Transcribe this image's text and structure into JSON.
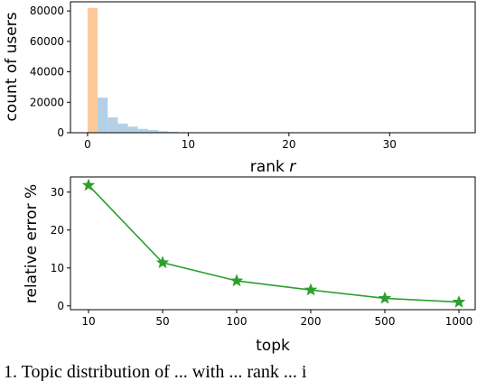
{
  "chart_data": [
    {
      "type": "bar",
      "title": "",
      "xlabel": "rank",
      "xlabel_var": "r",
      "ylabel": "count of users",
      "xlim": [
        -1.7,
        38.5
      ],
      "ylim": [
        0,
        86000
      ],
      "xticks": [
        0,
        10,
        20,
        30
      ],
      "yticks": [
        0,
        20000,
        40000,
        60000,
        80000
      ],
      "bin_width": 1,
      "colors": {
        "highlight": "#fdc999",
        "bars": "#b3d0e6"
      },
      "highlight": {
        "x": 0,
        "value": 82000
      },
      "bins": [
        {
          "x": 1,
          "value": 23000
        },
        {
          "x": 2,
          "value": 10000
        },
        {
          "x": 3,
          "value": 6000
        },
        {
          "x": 4,
          "value": 4000
        },
        {
          "x": 5,
          "value": 2500
        },
        {
          "x": 6,
          "value": 1800
        },
        {
          "x": 7,
          "value": 1000
        },
        {
          "x": 8,
          "value": 600
        },
        {
          "x": 9,
          "value": 300
        },
        {
          "x": 10,
          "value": 150
        }
      ]
    },
    {
      "type": "line",
      "title": "",
      "xlabel": "topk",
      "ylabel": "relative error %",
      "categories": [
        "10",
        "50",
        "100",
        "200",
        "500",
        "1000"
      ],
      "ylim": [
        -1,
        34
      ],
      "yticks": [
        0,
        10,
        20,
        30
      ],
      "marker": "star",
      "color": "#2ca02c",
      "series": [
        {
          "values": [
            31.8,
            11.4,
            6.6,
            4.2,
            2.0,
            1.0
          ]
        }
      ]
    }
  ],
  "caption": "1. Topic distribution of ... with ... rank ... i"
}
